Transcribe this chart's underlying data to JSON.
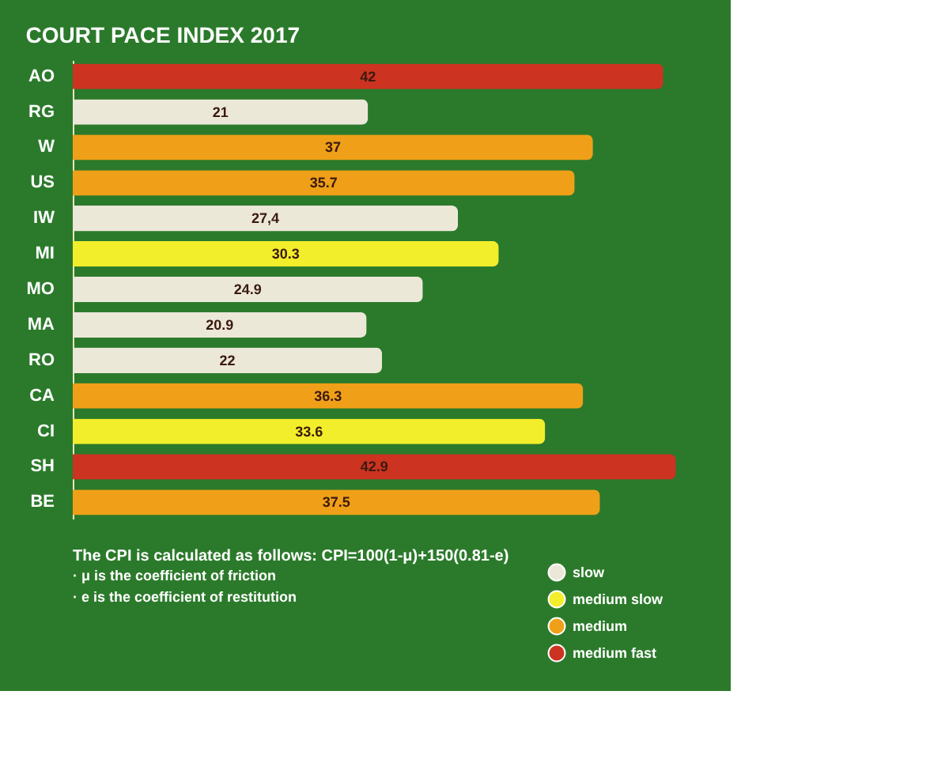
{
  "chart_data": {
    "type": "bar",
    "orientation": "horizontal",
    "stacked": true,
    "title": "COURT PACE INDEX 2017",
    "categories": [
      "AO",
      "RG",
      "W",
      "US",
      "IW",
      "MI",
      "MO",
      "MA",
      "RO",
      "CA",
      "CI",
      "SH",
      "BE"
    ],
    "series": [
      {
        "name": "slow",
        "color": "#ece8d8",
        "values": [
          null,
          21,
          null,
          null,
          27.4,
          null,
          24.9,
          20.9,
          22,
          null,
          null,
          null,
          null
        ],
        "value_labels": [
          null,
          "21",
          null,
          null,
          "27,4",
          null,
          "24.9",
          "20.9",
          "22",
          null,
          null,
          null,
          null
        ]
      },
      {
        "name": "medium slow",
        "color": "#f2ee2c",
        "values": [
          null,
          null,
          null,
          null,
          null,
          30.3,
          null,
          null,
          null,
          null,
          33.6,
          null,
          null
        ],
        "value_labels": [
          null,
          null,
          null,
          null,
          null,
          "30.3",
          null,
          null,
          null,
          null,
          "33.6",
          null,
          null
        ]
      },
      {
        "name": "medium",
        "color": "#f0a018",
        "values": [
          null,
          null,
          37,
          35.7,
          null,
          null,
          null,
          null,
          null,
          36.3,
          null,
          null,
          37.5
        ],
        "value_labels": [
          null,
          null,
          "37",
          "35.7",
          null,
          null,
          null,
          null,
          null,
          "36.3",
          null,
          null,
          "37.5"
        ]
      },
      {
        "name": "medium fast",
        "color": "#cc3320",
        "values": [
          42,
          null,
          null,
          null,
          null,
          null,
          null,
          null,
          null,
          null,
          null,
          42.9,
          null
        ],
        "value_labels": [
          "42",
          null,
          null,
          null,
          null,
          null,
          null,
          null,
          null,
          null,
          null,
          "42.9",
          null
        ]
      }
    ],
    "legend": "bottom right",
    "annotations": [
      "The CPI is calculated as follows: CPI=100(1-μ)+150(0.81-e)",
      "· μ is the coefficient of friction",
      "· e is the coefficient of restitution"
    ]
  }
}
